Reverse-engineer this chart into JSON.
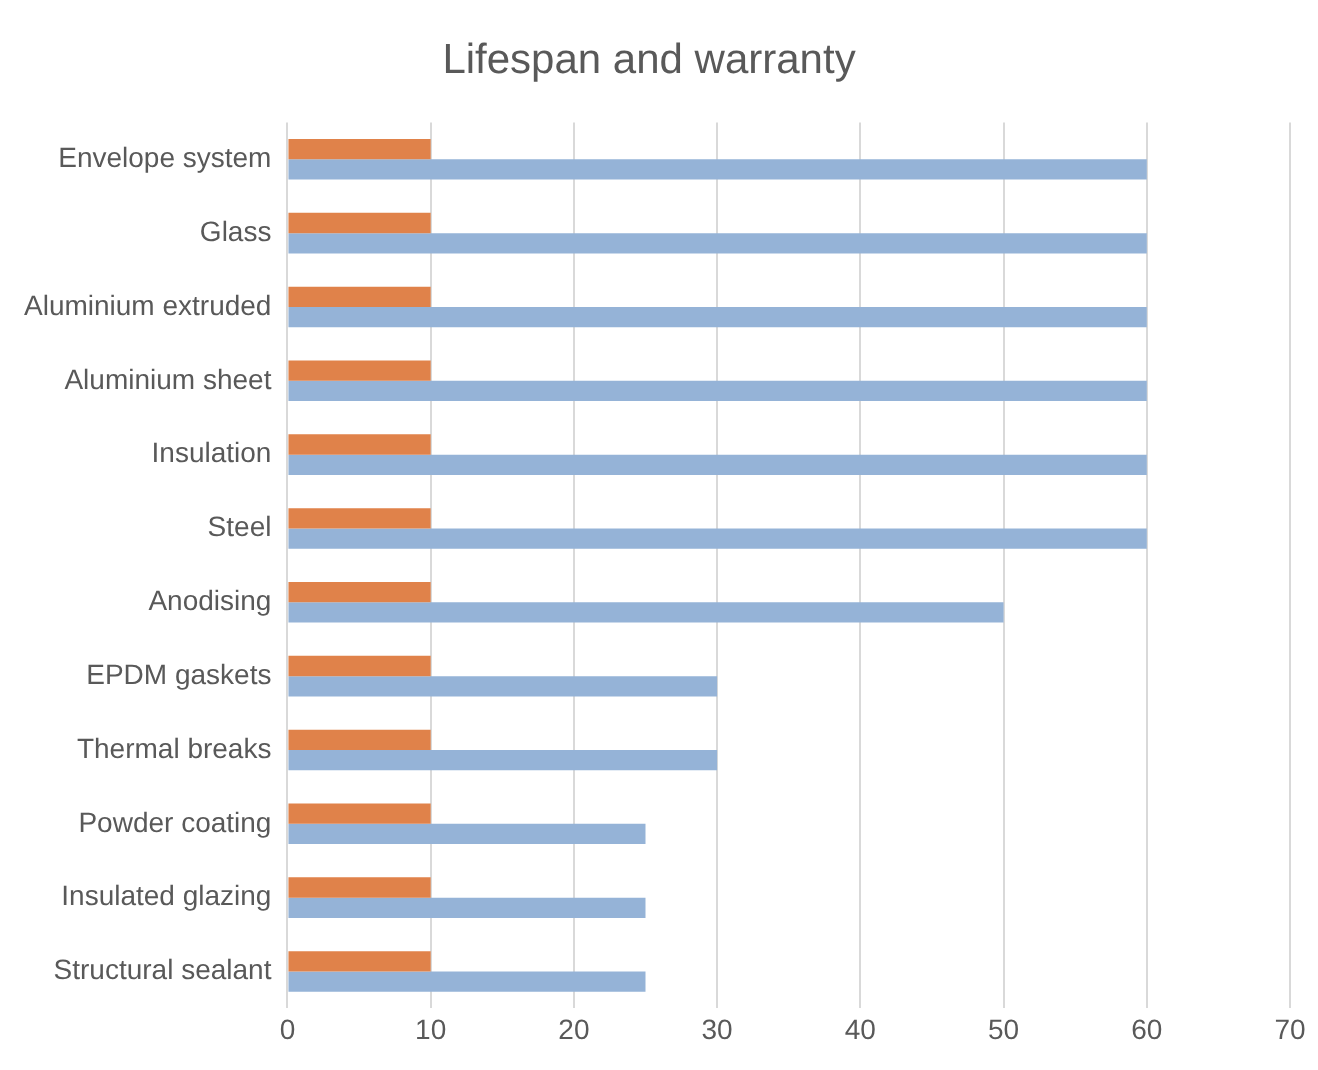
{
  "chart_data": {
    "type": "bar",
    "orientation": "horizontal",
    "title": "Lifespan and warranty",
    "categories": [
      "Envelope system",
      "Glass",
      "Aluminium extruded",
      "Aluminium sheet",
      "Insulation",
      "Steel",
      "Anodising",
      "EPDM gaskets",
      "Thermal breaks",
      "Powder coating",
      "Insulated glazing",
      "Structural sealant"
    ],
    "series": [
      {
        "color": "#e0824a",
        "values": [
          10,
          10,
          10,
          10,
          10,
          10,
          10,
          10,
          10,
          10,
          10,
          10
        ]
      },
      {
        "color": "#95b3d7",
        "values": [
          60,
          60,
          60,
          60,
          60,
          60,
          50,
          30,
          30,
          25,
          25,
          25
        ]
      }
    ],
    "xlim": [
      0,
      70
    ],
    "xticks": [
      0,
      10,
      20,
      30,
      40,
      50,
      60,
      70
    ],
    "grid": "x",
    "legend": false
  }
}
